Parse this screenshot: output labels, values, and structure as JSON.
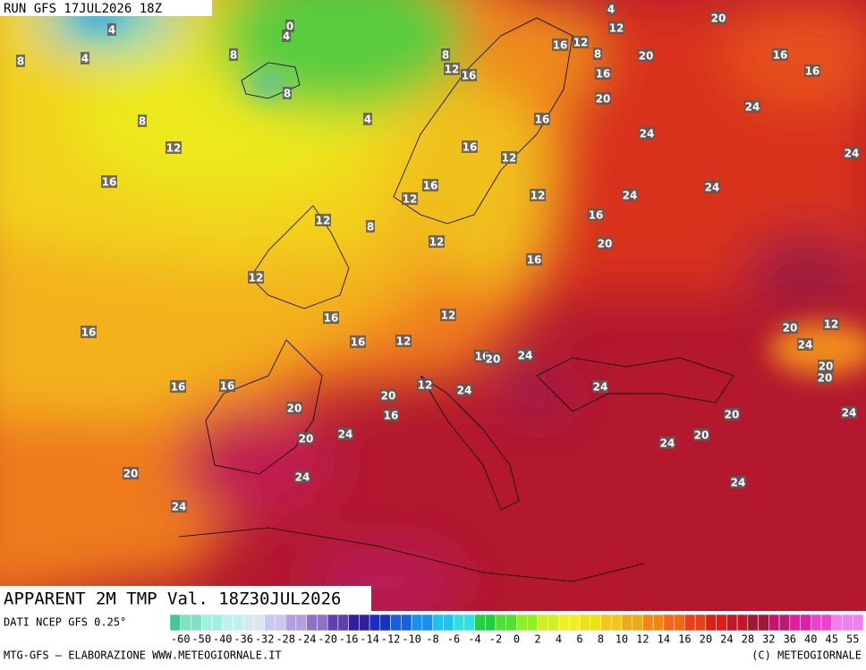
{
  "header": {
    "run": "RUN GFS 17JUL2026 18Z"
  },
  "title": "APPARENT 2M TMP Val. 18Z30JUL2026",
  "footer": {
    "source": "DATI NCEP GFS 0.25°",
    "credit": "MTG-GFS — ELABORAZIONE WWW.METEOGIORNALE.IT",
    "copyright": "(C) METEOGIORNALE"
  },
  "legend": {
    "ticks": [
      -60,
      -50,
      -40,
      -36,
      -32,
      -28,
      -24,
      -20,
      -16,
      -14,
      -12,
      -10,
      -8,
      -6,
      -4,
      -2,
      0,
      2,
      4,
      6,
      8,
      10,
      12,
      14,
      16,
      20,
      24,
      28,
      32,
      36,
      40,
      45,
      55
    ]
  },
  "map": {
    "labels": [
      4,
      0,
      4,
      4,
      12,
      20,
      8,
      4,
      8,
      8,
      8,
      12,
      16,
      16,
      12,
      8,
      16,
      20,
      16,
      16,
      20,
      24,
      8,
      4,
      16,
      12,
      16,
      24,
      12,
      24,
      16,
      16,
      24,
      12,
      12,
      24,
      12,
      8,
      16,
      12,
      20,
      16,
      12,
      12,
      16,
      16,
      16,
      12,
      20,
      12,
      24,
      16,
      20,
      24,
      20,
      20,
      16,
      16,
      12,
      24,
      20,
      24,
      16,
      20,
      20,
      24,
      20,
      24,
      20,
      24,
      20,
      24,
      24,
      24
    ]
  }
}
